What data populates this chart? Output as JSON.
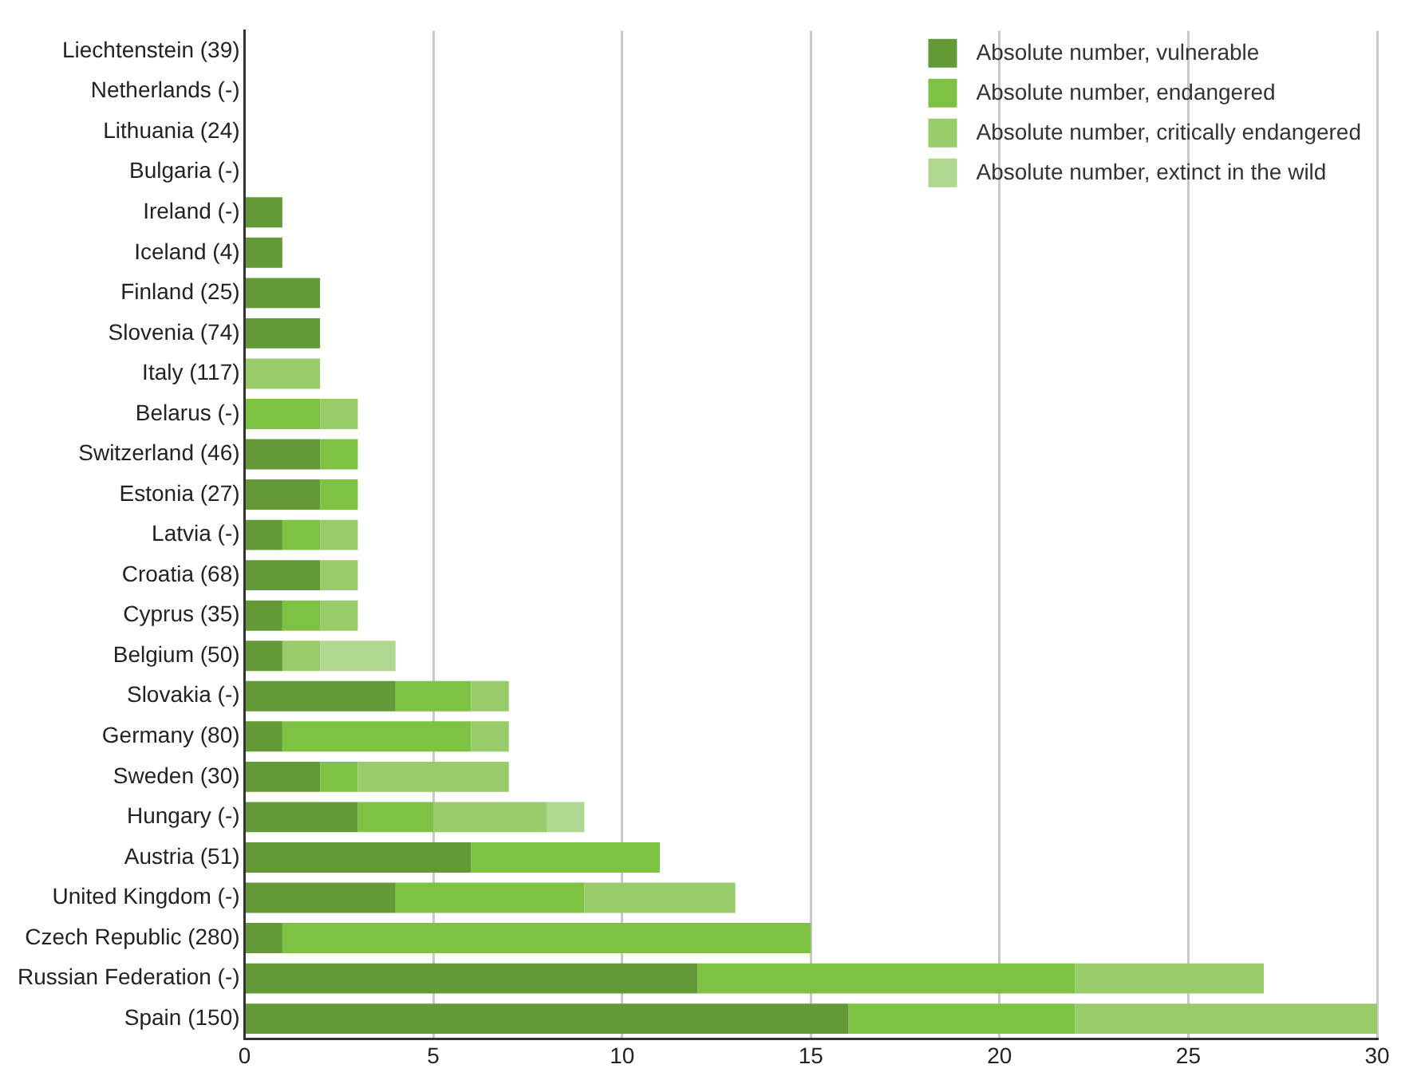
{
  "chart_data": {
    "type": "bar",
    "orientation": "horizontal",
    "stacked": true,
    "categories": [
      "Liechtenstein (39)",
      "Netherlands (-)",
      "Lithuania (24)",
      "Bulgaria (-)",
      "Ireland (-)",
      "Iceland (4)",
      "Finland (25)",
      "Slovenia (74)",
      "Italy (117)",
      "Belarus (-)",
      "Switzerland (46)",
      "Estonia (27)",
      "Latvia (-)",
      "Croatia (68)",
      "Cyprus (35)",
      "Belgium (50)",
      "Slovakia (-)",
      "Germany (80)",
      "Sweden (30)",
      "Hungary (-)",
      "Austria (51)",
      "United Kingdom (-)",
      "Czech Republic (280)",
      "Russian Federation (-)",
      "Spain (150)"
    ],
    "series": [
      {
        "name": "Absolute number, vulnerable",
        "color": "#639a37",
        "values": [
          0,
          0,
          0,
          0,
          1,
          1,
          2,
          2,
          0,
          0,
          2,
          2,
          1,
          2,
          1,
          1,
          4,
          1,
          2,
          3,
          6,
          4,
          1,
          12,
          16
        ]
      },
      {
        "name": "Absolute number, endangered",
        "color": "#7dc243",
        "values": [
          0,
          0,
          0,
          0,
          0,
          0,
          0,
          0,
          0,
          2,
          1,
          1,
          1,
          0,
          1,
          0,
          2,
          5,
          1,
          2,
          5,
          5,
          14,
          10,
          6
        ]
      },
      {
        "name": "Absolute number, critically endangered",
        "color": "#98cb6a",
        "values": [
          0,
          0,
          0,
          0,
          0,
          0,
          0,
          0,
          2,
          1,
          0,
          0,
          1,
          1,
          1,
          1,
          1,
          1,
          4,
          3,
          0,
          4,
          0,
          5,
          8
        ]
      },
      {
        "name": "Absolute number, extinct in the wild",
        "color": "#b0d78f",
        "values": [
          0,
          0,
          0,
          0,
          0,
          0,
          0,
          0,
          0,
          0,
          0,
          0,
          0,
          0,
          0,
          2,
          0,
          0,
          0,
          1,
          0,
          0,
          0,
          0,
          0
        ]
      }
    ],
    "xlim": [
      0,
      30
    ],
    "xticks": [
      0,
      5,
      10,
      15,
      20,
      25,
      30
    ],
    "grid": "x",
    "legend": "top right"
  }
}
